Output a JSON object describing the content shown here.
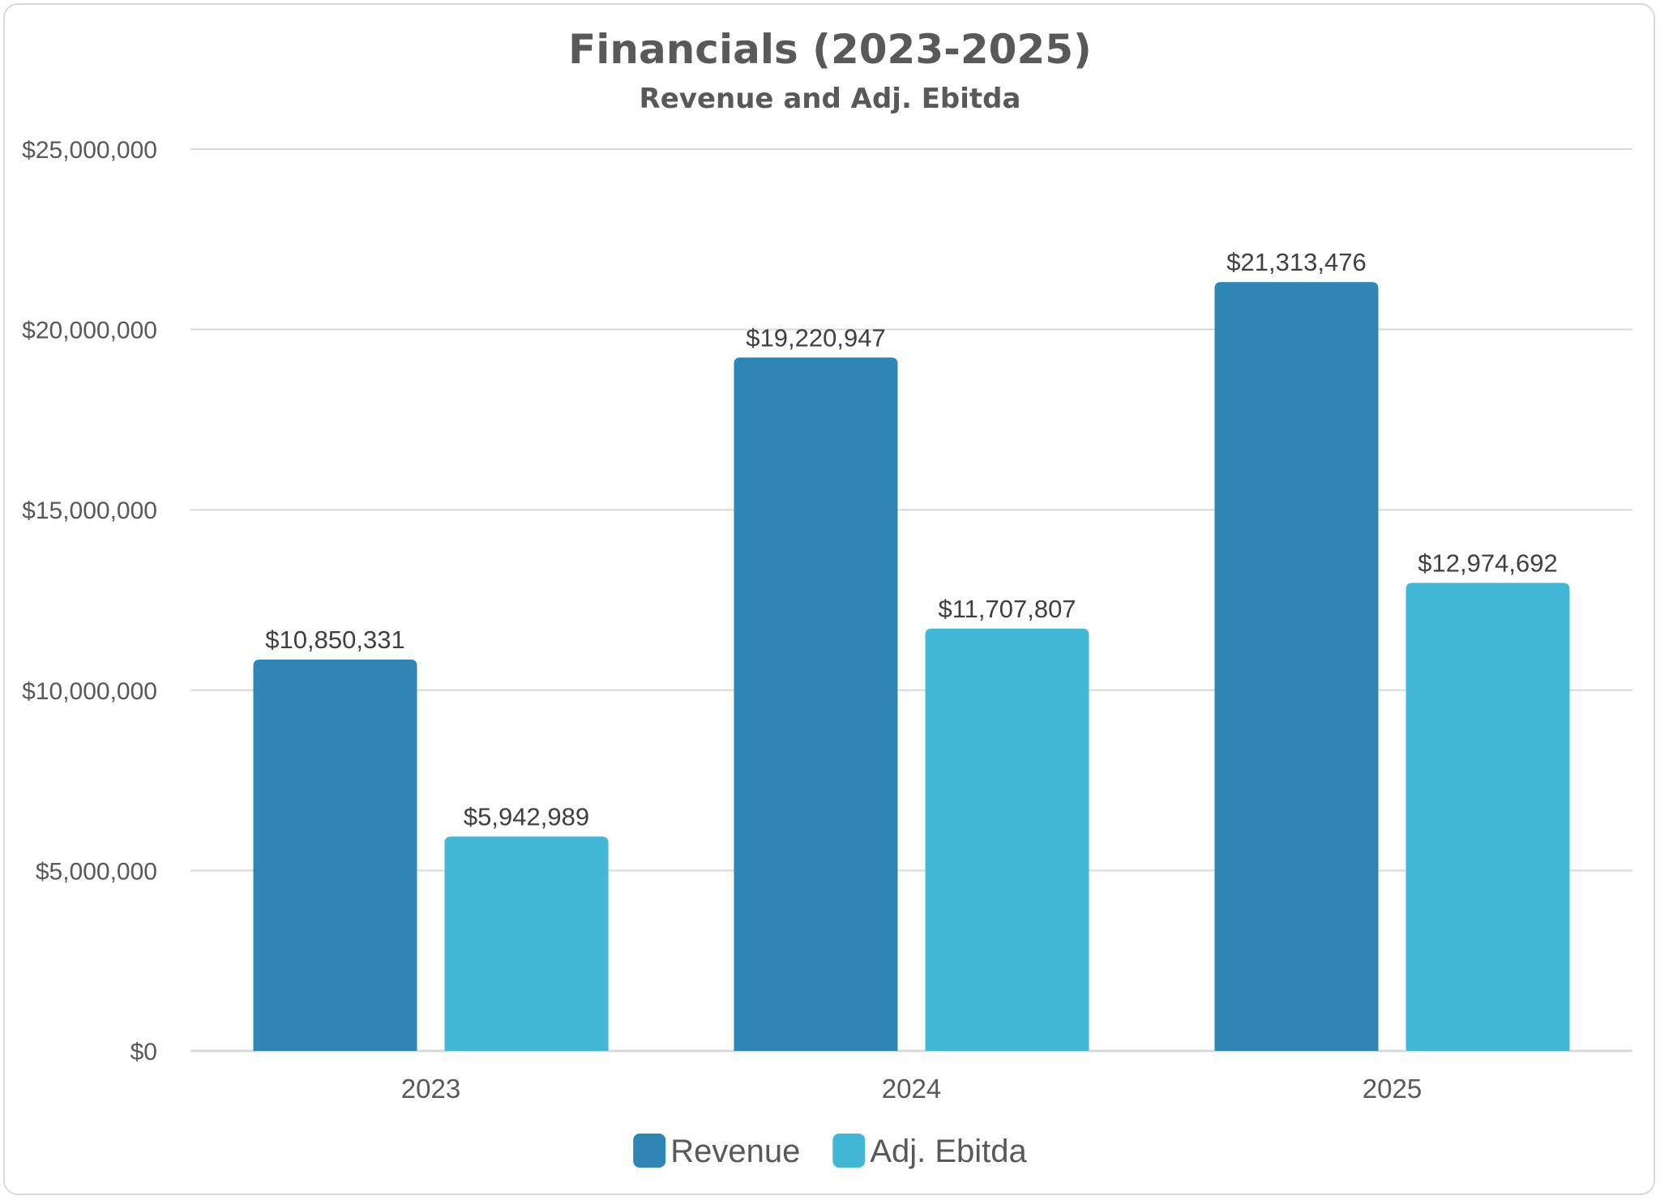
{
  "chart_data": {
    "type": "bar",
    "title": "Financials (2023-2025)",
    "subtitle": "Revenue and Adj. Ebitda",
    "categories": [
      "2023",
      "2024",
      "2025"
    ],
    "series": [
      {
        "name": "Revenue",
        "color": "#2E86B4",
        "values": [
          10850331,
          19220947,
          21313476
        ],
        "labels": [
          "$10,850,331",
          "$19,220,947",
          "$21,313,476"
        ]
      },
      {
        "name": "Adj. Ebitda",
        "color": "#42B8D6",
        "values": [
          5942989,
          11707807,
          12974692
        ],
        "labels": [
          "$5,942,989",
          "$11,707,807",
          "$12,974,692"
        ]
      }
    ],
    "ylim": [
      0,
      25000000
    ],
    "yticks": [
      0,
      5000000,
      10000000,
      15000000,
      20000000,
      25000000
    ],
    "ytick_labels": [
      "$0",
      "$5,000,000",
      "$10,000,000",
      "$15,000,000",
      "$20,000,000",
      "$25,000,000"
    ],
    "grid": true,
    "legend": "bottom-center",
    "gridline_color": "#d9d9d9"
  }
}
